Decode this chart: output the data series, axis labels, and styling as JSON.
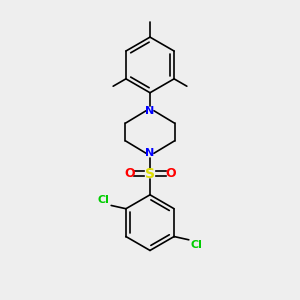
{
  "background_color": "#eeeeee",
  "bond_color": "#000000",
  "nitrogen_color": "#0000ff",
  "sulfur_color": "#dddd00",
  "oxygen_color": "#ff0000",
  "chlorine_color": "#00cc00",
  "line_width": 1.2,
  "font_size": 8,
  "figsize": [
    3.0,
    3.0
  ],
  "dpi": 100,
  "xlim": [
    -3.5,
    3.5
  ],
  "ylim": [
    -4.5,
    4.5
  ]
}
